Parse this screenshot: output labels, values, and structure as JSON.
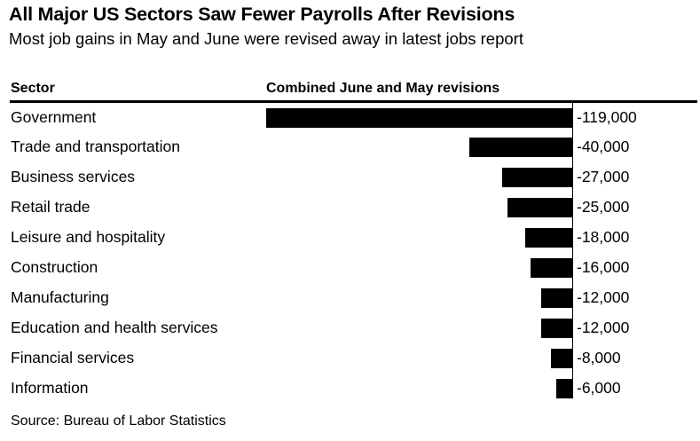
{
  "chart_data": {
    "type": "bar",
    "orientation": "horizontal",
    "title": "All Major US Sectors Saw Fewer Payrolls After Revisions",
    "subtitle": "Most job gains in May and June were revised away in latest jobs report",
    "column_headers": {
      "sector": "Sector",
      "value": "Combined June and May revisions"
    },
    "categories": [
      "Government",
      "Trade and transportation",
      "Business services",
      "Retail trade",
      "Leisure and hospitality",
      "Construction",
      "Manufacturing",
      "Education and health services",
      "Financial services",
      "Information"
    ],
    "values": [
      -119000,
      -40000,
      -27000,
      -25000,
      -18000,
      -16000,
      -12000,
      -12000,
      -8000,
      -6000
    ],
    "value_labels": [
      "-119,000",
      "-40,000",
      "-27,000",
      "-25,000",
      "-18,000",
      "-16,000",
      "-12,000",
      "-12,000",
      "-8,000",
      "-6,000"
    ],
    "xlim": [
      -119000,
      0
    ],
    "bar_color": "#000000",
    "axis_line_color": "#000000",
    "background_color": "#ffffff",
    "text_color": "#000000",
    "legend": "none",
    "grid": "off",
    "source": "Source: Bureau of Labor Statistics"
  }
}
